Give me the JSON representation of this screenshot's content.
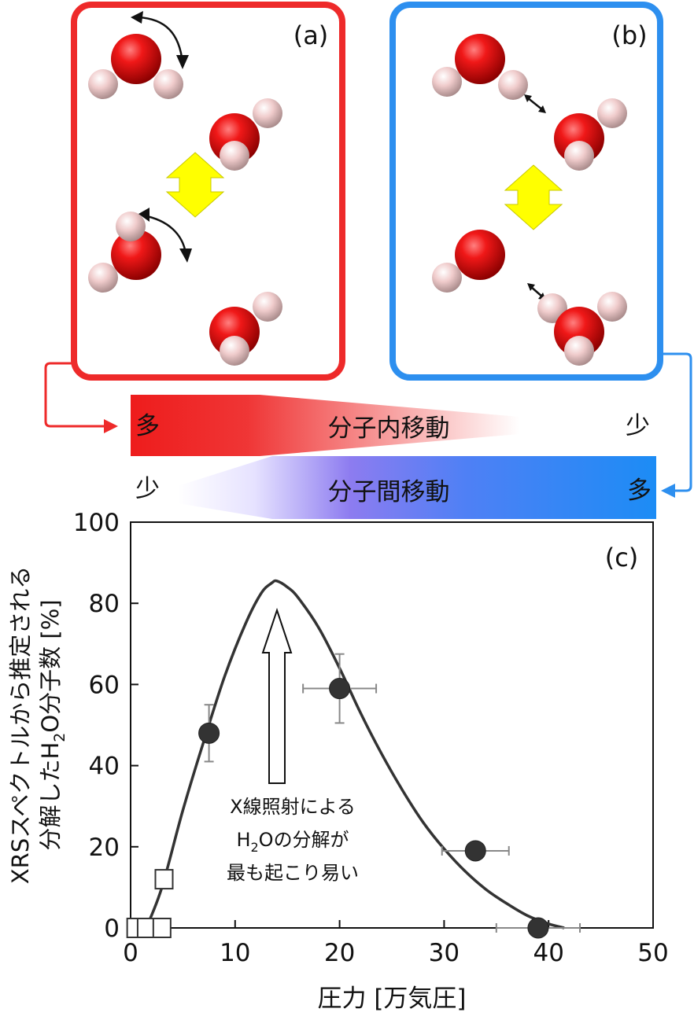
{
  "panels": {
    "a_label": "(a)",
    "b_label": "(b)",
    "c_label": "(c)",
    "a_color": "#ee2a2a",
    "b_color": "#2d8fef"
  },
  "bands": {
    "intra": {
      "label": "分子内移動",
      "left": "多",
      "right": "少",
      "color": "#ee2222"
    },
    "inter": {
      "label": "分子間移動",
      "left": "少",
      "right": "多",
      "color": "#1f8cf5"
    }
  },
  "annotation": {
    "line1": "X線照射による",
    "line2_pre": "H",
    "line2_sub": "2",
    "line2_post": "Oの分解が",
    "line3": "最も起こり易い"
  },
  "chart_data": {
    "type": "scatter",
    "xlabel": "圧力 [万気圧]",
    "ylabel_line1": "XRSスペクトルから推定される",
    "ylabel_line2_pre": "分解したH",
    "ylabel_line2_sub": "2",
    "ylabel_line2_post": "O分子数 [%]",
    "xlim": [
      0,
      50
    ],
    "ylim": [
      0,
      100
    ],
    "xticks": [
      "0",
      "10",
      "20",
      "30",
      "40",
      "50"
    ],
    "yticks": [
      "0",
      "20",
      "40",
      "60",
      "80",
      "100"
    ],
    "series": [
      {
        "marker": "filled-circle",
        "points": [
          {
            "x": 7.5,
            "y": 48,
            "xerr": 0,
            "yerr": 7
          },
          {
            "x": 20,
            "y": 59,
            "xerr": 3.5,
            "yerr": 8.5
          },
          {
            "x": 33,
            "y": 19,
            "xerr": 3.2,
            "yerr": 0
          },
          {
            "x": 39,
            "y": 0,
            "xerr": 4,
            "yerr": 0
          }
        ]
      },
      {
        "marker": "open-square",
        "points": [
          {
            "x": 0.5,
            "y": 0
          },
          {
            "x": 1.5,
            "y": 0
          },
          {
            "x": 3,
            "y": 0
          },
          {
            "x": 3.2,
            "y": 12
          }
        ]
      }
    ],
    "curve": [
      [
        1.5,
        0
      ],
      [
        3,
        10
      ],
      [
        5,
        29
      ],
      [
        7,
        46
      ],
      [
        9,
        62
      ],
      [
        11,
        75
      ],
      [
        12.5,
        82.5
      ],
      [
        13.5,
        85
      ],
      [
        14,
        85.5
      ],
      [
        15,
        84
      ],
      [
        16,
        81.5
      ],
      [
        18,
        74
      ],
      [
        20,
        64
      ],
      [
        22,
        53
      ],
      [
        24,
        43
      ],
      [
        26,
        34
      ],
      [
        28,
        26
      ],
      [
        30,
        19.5
      ],
      [
        32,
        14
      ],
      [
        34,
        9.5
      ],
      [
        36,
        6
      ],
      [
        38,
        3
      ],
      [
        40,
        1
      ],
      [
        41.5,
        0
      ]
    ]
  }
}
